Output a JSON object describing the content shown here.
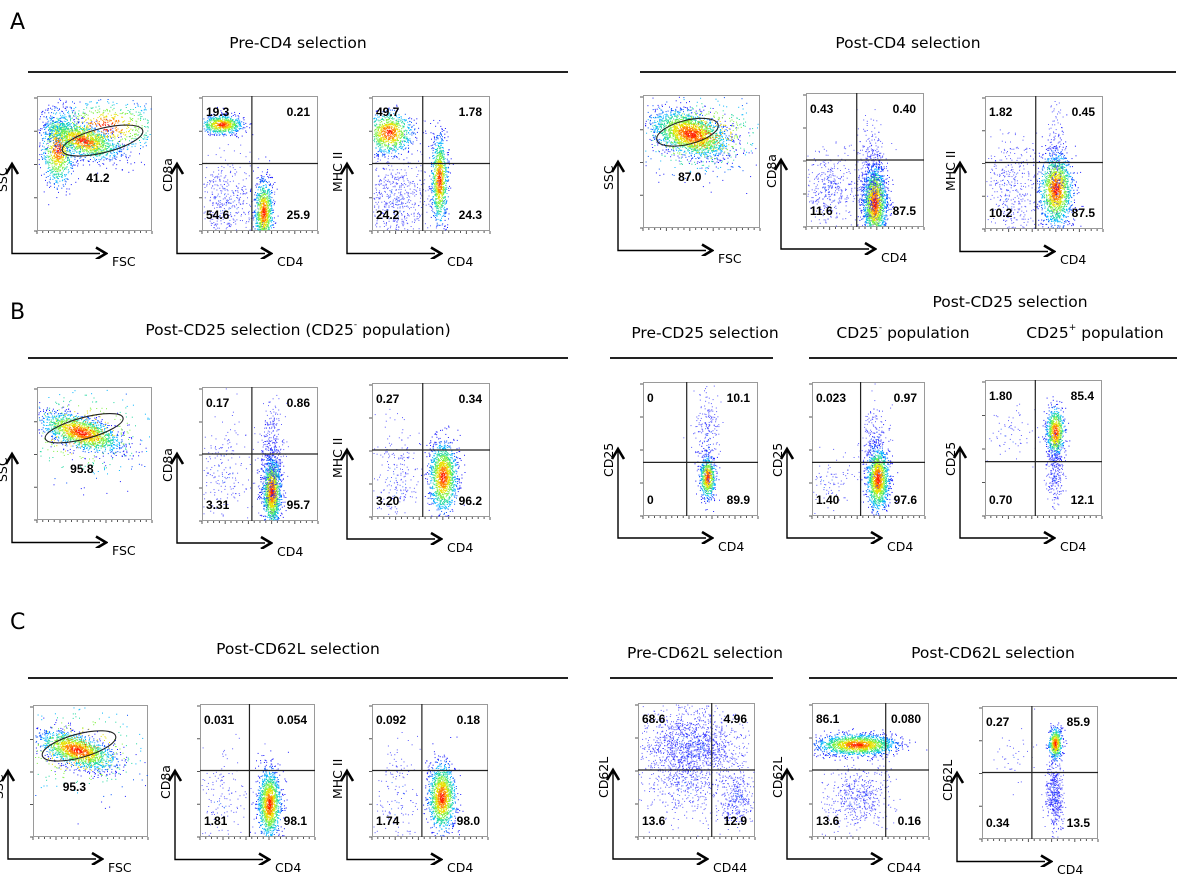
{
  "figure": {
    "panels": [
      {
        "letter": "A",
        "groups": [
          {
            "title": "Pre-CD4 selection",
            "title_html": "Pre-CD4 selection"
          },
          {
            "title": "Post-CD4 selection",
            "title_html": "Post-CD4 selection"
          }
        ]
      },
      {
        "letter": "B",
        "groups": [
          {
            "title": "Post-CD25 selection (CD25- population)",
            "title_html": "Post-CD25 selection (CD25<sup>-</sup> population)"
          },
          {
            "title": "Pre-CD25 selection",
            "title_html": "Pre-CD25 selection"
          },
          {
            "title": "Post-CD25 selection",
            "title_html": "Post-CD25 selection"
          },
          {
            "title": "CD25- population",
            "title_html": "CD25<sup>-</sup> population"
          },
          {
            "title": "CD25+ population",
            "title_html": "CD25<sup>+</sup> population"
          }
        ]
      },
      {
        "letter": "C",
        "groups": [
          {
            "title": "Post-CD62L selection",
            "title_html": "Post-CD62L selection"
          },
          {
            "title": "Pre-CD62L selection",
            "title_html": "Pre-CD62L selection"
          },
          {
            "title": "Post-CD62L selection",
            "title_html": "Post-CD62L selection"
          }
        ]
      }
    ]
  },
  "chart_data": [
    {
      "id": "A1",
      "type": "scatter",
      "kind": "gate",
      "xlabel": "FSC",
      "ylabel": "SSC",
      "gate_percent": "41.2",
      "group": "Pre-CD4 selection"
    },
    {
      "id": "A2",
      "type": "scatter",
      "kind": "quadrant",
      "xlabel": "CD4",
      "ylabel": "CD8a",
      "quadrants": {
        "UL": "19.3",
        "UR": "0.21",
        "LL": "54.6",
        "LR": "25.9"
      },
      "group": "Pre-CD4 selection"
    },
    {
      "id": "A3",
      "type": "scatter",
      "kind": "quadrant",
      "xlabel": "CD4",
      "ylabel": "MHC II",
      "quadrants": {
        "UL": "49.7",
        "UR": "1.78",
        "LL": "24.2",
        "LR": "24.3"
      },
      "group": "Pre-CD4 selection"
    },
    {
      "id": "A4",
      "type": "scatter",
      "kind": "gate",
      "xlabel": "FSC",
      "ylabel": "SSC",
      "gate_percent": "87.0",
      "group": "Post-CD4 selection"
    },
    {
      "id": "A5",
      "type": "scatter",
      "kind": "quadrant",
      "xlabel": "CD4",
      "ylabel": "CD8a",
      "quadrants": {
        "UL": "0.43",
        "UR": "0.40",
        "LL": "11.6",
        "LR": "87.5"
      },
      "group": "Post-CD4 selection"
    },
    {
      "id": "A6",
      "type": "scatter",
      "kind": "quadrant",
      "xlabel": "CD4",
      "ylabel": "MHC II",
      "quadrants": {
        "UL": "1.82",
        "UR": "0.45",
        "LL": "10.2",
        "LR": "87.5"
      },
      "group": "Post-CD4 selection"
    },
    {
      "id": "B1",
      "type": "scatter",
      "kind": "gate",
      "xlabel": "FSC",
      "ylabel": "SSC",
      "gate_percent": "95.8",
      "group": "Post-CD25 selection (CD25- population)"
    },
    {
      "id": "B2",
      "type": "scatter",
      "kind": "quadrant",
      "xlabel": "CD4",
      "ylabel": "CD8a",
      "quadrants": {
        "UL": "0.17",
        "UR": "0.86",
        "LL": "3.31",
        "LR": "95.7"
      },
      "group": "Post-CD25 selection (CD25- population)"
    },
    {
      "id": "B3",
      "type": "scatter",
      "kind": "quadrant",
      "xlabel": "CD4",
      "ylabel": "MHC II",
      "quadrants": {
        "UL": "0.27",
        "UR": "0.34",
        "LL": "3.20",
        "LR": "96.2"
      },
      "group": "Post-CD25 selection (CD25- population)"
    },
    {
      "id": "B4",
      "type": "scatter",
      "kind": "quadrant",
      "xlabel": "CD4",
      "ylabel": "CD25",
      "quadrants": {
        "UL": "0",
        "UR": "10.1",
        "LL": "0",
        "LR": "89.9"
      },
      "group": "Pre-CD25 selection"
    },
    {
      "id": "B5",
      "type": "scatter",
      "kind": "quadrant",
      "xlabel": "CD4",
      "ylabel": "CD25",
      "quadrants": {
        "UL": "0.023",
        "UR": "0.97",
        "LL": "1.40",
        "LR": "97.6"
      },
      "group": "Post-CD25 selection / CD25- population"
    },
    {
      "id": "B6",
      "type": "scatter",
      "kind": "quadrant",
      "xlabel": "CD4",
      "ylabel": "CD25",
      "quadrants": {
        "UL": "1.80",
        "UR": "85.4",
        "LL": "0.70",
        "LR": "12.1"
      },
      "group": "Post-CD25 selection / CD25+ population"
    },
    {
      "id": "C1",
      "type": "scatter",
      "kind": "gate",
      "xlabel": "FSC",
      "ylabel": "SSC",
      "gate_percent": "95.3",
      "group": "Post-CD62L selection"
    },
    {
      "id": "C2",
      "type": "scatter",
      "kind": "quadrant",
      "xlabel": "CD4",
      "ylabel": "CD8a",
      "quadrants": {
        "UL": "0.031",
        "UR": "0.054",
        "LL": "1.81",
        "LR": "98.1"
      },
      "group": "Post-CD62L selection"
    },
    {
      "id": "C3",
      "type": "scatter",
      "kind": "quadrant",
      "xlabel": "CD4",
      "ylabel": "MHC II",
      "quadrants": {
        "UL": "0.092",
        "UR": "0.18",
        "LL": "1.74",
        "LR": "98.0"
      },
      "group": "Post-CD62L selection"
    },
    {
      "id": "C4",
      "type": "scatter",
      "kind": "quadrant",
      "xlabel": "CD44",
      "ylabel": "CD62L",
      "quadrants": {
        "UL": "68.6",
        "UR": "4.96",
        "LL": "13.6",
        "LR": "12.9"
      },
      "group": "Pre-CD62L selection"
    },
    {
      "id": "C5",
      "type": "scatter",
      "kind": "quadrant",
      "xlabel": "CD44",
      "ylabel": "CD62L",
      "quadrants": {
        "UL": "86.1",
        "UR": "0.080",
        "LL": "13.6",
        "LR": "0.16"
      },
      "group": "Post-CD62L selection"
    },
    {
      "id": "C6",
      "type": "scatter",
      "kind": "quadrant",
      "xlabel": "CD4",
      "ylabel": "CD62L",
      "quadrants": {
        "UL": "0.27",
        "UR": "85.9",
        "LL": "0.34",
        "LR": "13.5"
      },
      "group": "Post-CD62L selection"
    }
  ],
  "density_colors": [
    "#1a1aff",
    "#0050ff",
    "#00b4ff",
    "#20d8a0",
    "#7ef040",
    "#e8e000",
    "#ff8000",
    "#ff2000"
  ]
}
